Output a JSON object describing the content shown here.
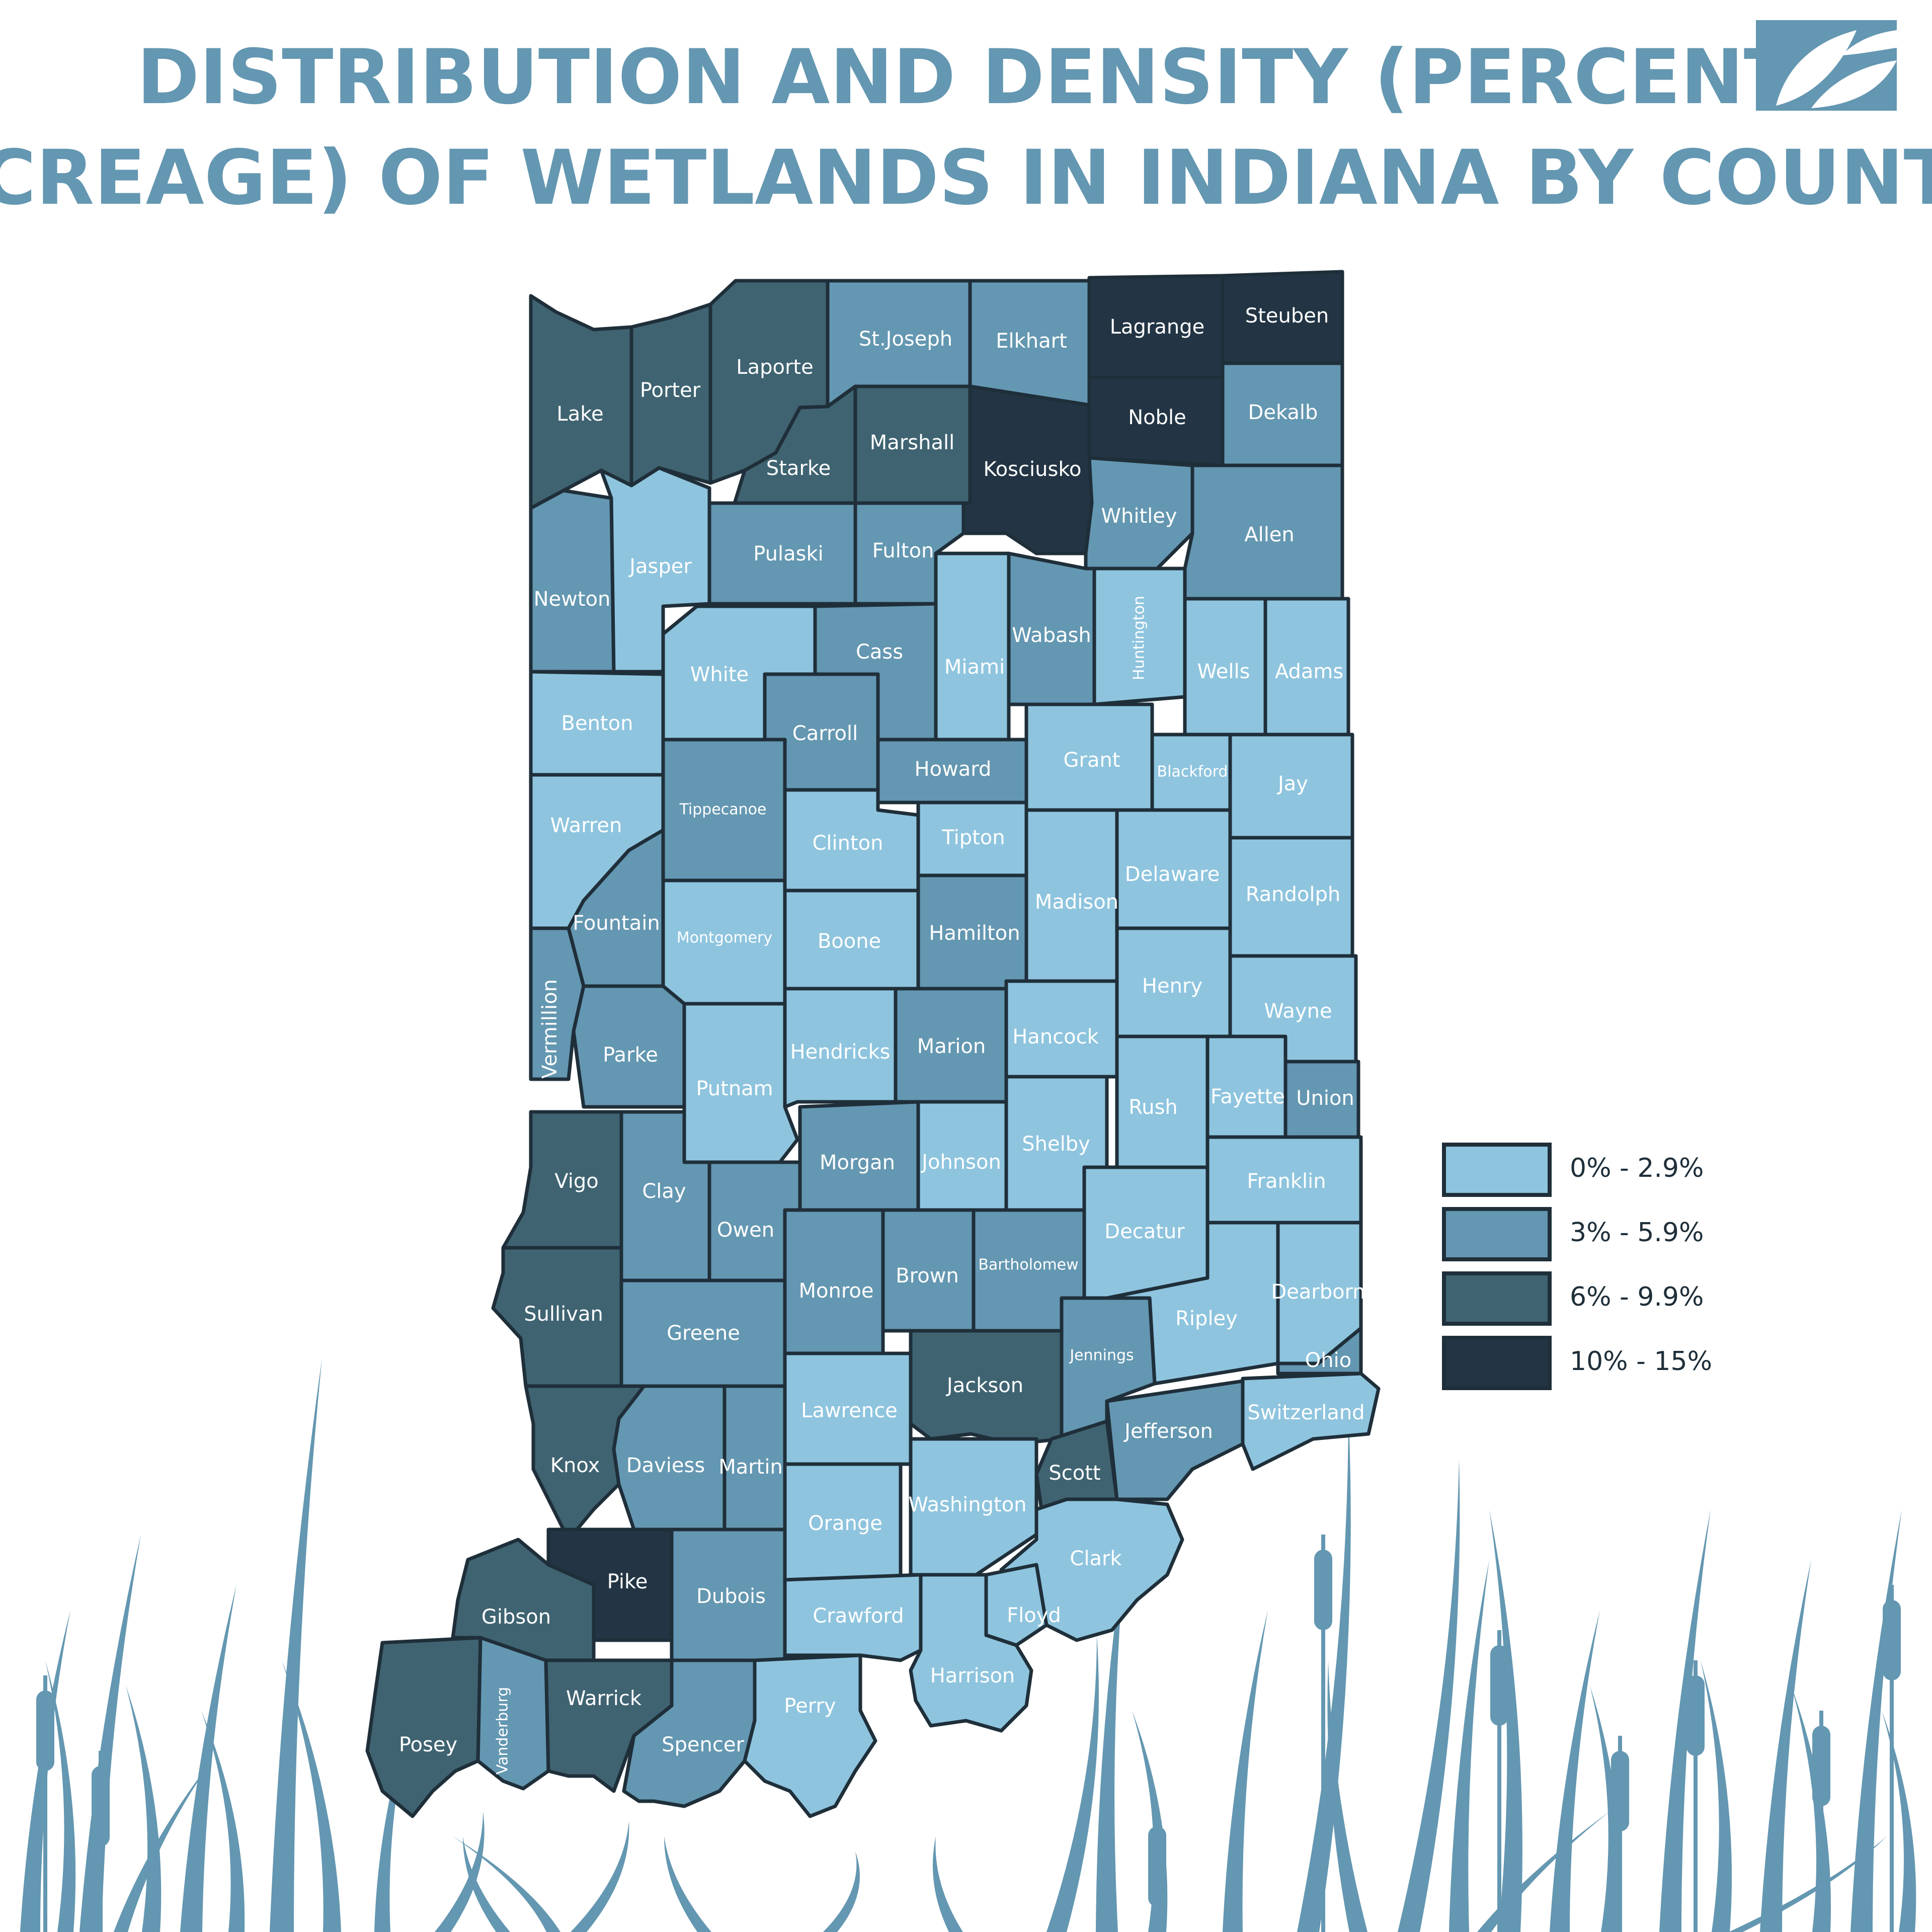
{
  "title": {
    "line1": "DISTRIBUTION AND DENSITY (PERCENT",
    "line2": "ACREAGE) OF WETLANDS IN INDIANA BY COUNTY"
  },
  "logo_icon": "leaf-logo-icon",
  "colors": {
    "c1": "#8ec4de",
    "c2": "#6497b1",
    "c3": "#3f6371",
    "c4": "#233544",
    "title": "#6497b1",
    "border": "#1f2f3a",
    "reeds": "#6497b1"
  },
  "legend": [
    {
      "label": "0% - 2.9%",
      "class": 1
    },
    {
      "label": "3% - 5.9%",
      "class": 2
    },
    {
      "label": "6% - 9.9%",
      "class": 3
    },
    {
      "label": "10% - 15%",
      "class": 4
    }
  ],
  "counties": [
    {
      "name": "Lake",
      "class": 3
    },
    {
      "name": "Porter",
      "class": 3
    },
    {
      "name": "Laporte",
      "class": 3
    },
    {
      "name": "St.Joseph",
      "class": 2
    },
    {
      "name": "Elkhart",
      "class": 2
    },
    {
      "name": "Lagrange",
      "class": 4
    },
    {
      "name": "Steuben",
      "class": 4
    },
    {
      "name": "Starke",
      "class": 3
    },
    {
      "name": "Marshall",
      "class": 3
    },
    {
      "name": "Kosciusko",
      "class": 4
    },
    {
      "name": "Noble",
      "class": 4
    },
    {
      "name": "Dekalb",
      "class": 2
    },
    {
      "name": "Newton",
      "class": 2
    },
    {
      "name": "Jasper",
      "class": 1
    },
    {
      "name": "Pulaski",
      "class": 2
    },
    {
      "name": "Fulton",
      "class": 2
    },
    {
      "name": "Whitley",
      "class": 2
    },
    {
      "name": "Allen",
      "class": 2
    },
    {
      "name": "White",
      "class": 1
    },
    {
      "name": "Cass",
      "class": 2
    },
    {
      "name": "Miami",
      "class": 1
    },
    {
      "name": "Wabash",
      "class": 2
    },
    {
      "name": "Huntington",
      "class": 1
    },
    {
      "name": "Wells",
      "class": 1
    },
    {
      "name": "Adams",
      "class": 1
    },
    {
      "name": "Benton",
      "class": 1
    },
    {
      "name": "Carroll",
      "class": 2
    },
    {
      "name": "Howard",
      "class": 2
    },
    {
      "name": "Grant",
      "class": 1
    },
    {
      "name": "Blackford",
      "class": 1
    },
    {
      "name": "Jay",
      "class": 1
    },
    {
      "name": "Warren",
      "class": 1
    },
    {
      "name": "Tippecanoe",
      "class": 2
    },
    {
      "name": "Clinton",
      "class": 1
    },
    {
      "name": "Tipton",
      "class": 1
    },
    {
      "name": "Madison",
      "class": 1
    },
    {
      "name": "Delaware",
      "class": 1
    },
    {
      "name": "Randolph",
      "class": 1
    },
    {
      "name": "Fountain",
      "class": 2
    },
    {
      "name": "Montgomery",
      "class": 1
    },
    {
      "name": "Boone",
      "class": 1
    },
    {
      "name": "Hamilton",
      "class": 2
    },
    {
      "name": "Vermillion",
      "class": 2
    },
    {
      "name": "Parke",
      "class": 2
    },
    {
      "name": "Putnam",
      "class": 1
    },
    {
      "name": "Hendricks",
      "class": 1
    },
    {
      "name": "Marion",
      "class": 2
    },
    {
      "name": "Hancock",
      "class": 1
    },
    {
      "name": "Henry",
      "class": 1
    },
    {
      "name": "Wayne",
      "class": 1
    },
    {
      "name": "Rush",
      "class": 1
    },
    {
      "name": "Fayette",
      "class": 1
    },
    {
      "name": "Union",
      "class": 2
    },
    {
      "name": "Vigo",
      "class": 3
    },
    {
      "name": "Clay",
      "class": 2
    },
    {
      "name": "Owen",
      "class": 2
    },
    {
      "name": "Morgan",
      "class": 2
    },
    {
      "name": "Johnson",
      "class": 1
    },
    {
      "name": "Shelby",
      "class": 1
    },
    {
      "name": "Franklin",
      "class": 1
    },
    {
      "name": "Sullivan",
      "class": 3
    },
    {
      "name": "Greene",
      "class": 2
    },
    {
      "name": "Monroe",
      "class": 2
    },
    {
      "name": "Brown",
      "class": 2
    },
    {
      "name": "Bartholomew",
      "class": 2
    },
    {
      "name": "Decatur",
      "class": 1
    },
    {
      "name": "Ripley",
      "class": 1
    },
    {
      "name": "Dearborn",
      "class": 1
    },
    {
      "name": "Jackson",
      "class": 3
    },
    {
      "name": "Jennings",
      "class": 2
    },
    {
      "name": "Ohio",
      "class": 2
    },
    {
      "name": "Lawrence",
      "class": 1
    },
    {
      "name": "Switzerland",
      "class": 1
    },
    {
      "name": "Jefferson",
      "class": 2
    },
    {
      "name": "Knox",
      "class": 3
    },
    {
      "name": "Daviess",
      "class": 2
    },
    {
      "name": "Martin",
      "class": 2
    },
    {
      "name": "Scott",
      "class": 3
    },
    {
      "name": "Washington",
      "class": 1
    },
    {
      "name": "Orange",
      "class": 1
    },
    {
      "name": "Clark",
      "class": 1
    },
    {
      "name": "Pike",
      "class": 4
    },
    {
      "name": "Gibson",
      "class": 3
    },
    {
      "name": "Dubois",
      "class": 2
    },
    {
      "name": "Crawford",
      "class": 1
    },
    {
      "name": "Floyd",
      "class": 1
    },
    {
      "name": "Harrison",
      "class": 1
    },
    {
      "name": "Posey",
      "class": 3
    },
    {
      "name": "Vanderburg",
      "class": 2
    },
    {
      "name": "Warrick",
      "class": 3
    },
    {
      "name": "Spencer",
      "class": 2
    },
    {
      "name": "Perry",
      "class": 1
    }
  ]
}
